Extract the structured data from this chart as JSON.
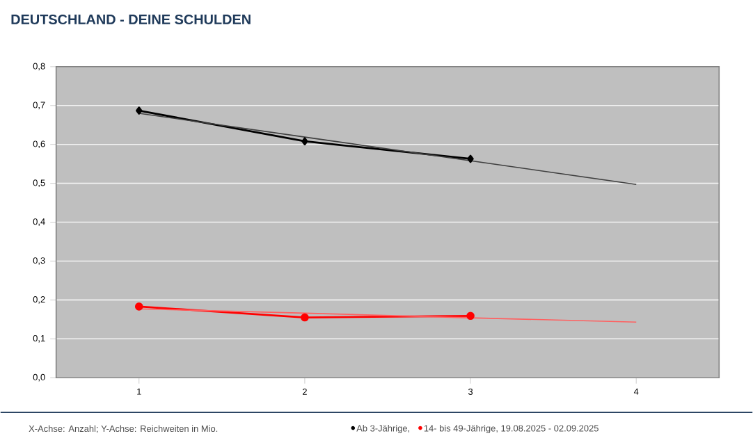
{
  "chart_data": {
    "type": "line",
    "title": "DEUTSCHLAND - DEINE SCHULDEN",
    "x": [
      1,
      2,
      3,
      4
    ],
    "xlim": [
      0.5,
      4.5
    ],
    "xticks": [
      1,
      2,
      3,
      4
    ],
    "ylim": [
      0,
      0.8
    ],
    "yticks": [
      {
        "value": 0,
        "label": "0,0"
      },
      {
        "value": 0.1,
        "label": "0,1"
      },
      {
        "value": 0.2,
        "label": "0,2"
      },
      {
        "value": 0.3,
        "label": "0,3"
      },
      {
        "value": 0.4,
        "label": "0,4"
      },
      {
        "value": 0.5,
        "label": "0,5"
      },
      {
        "value": 0.6,
        "label": "0,6"
      },
      {
        "value": 0.7,
        "label": "0,7"
      },
      {
        "value": 0.8,
        "label": "0,8"
      }
    ],
    "grid": "y",
    "legend": "bottom",
    "series": [
      {
        "name": "Ab 3-Jährige,",
        "color": "#000000",
        "marker": "diamond",
        "values": [
          0.687,
          0.608,
          0.563,
          null
        ]
      },
      {
        "name": "14- bis 49-Jährige, 19.08.2025 - 02.09.2025",
        "color": "#ff0000",
        "marker": "circle",
        "values": [
          0.183,
          0.155,
          0.159,
          null
        ]
      },
      {
        "type": "line",
        "color": "#404040",
        "marker": "none",
        "values": [
          0.68,
          0.619,
          0.558,
          0.497
        ]
      },
      {
        "type": "line",
        "color": "#ff6060",
        "marker": "none",
        "values": [
          0.177,
          0.166,
          0.154,
          0.143
        ]
      }
    ],
    "annotations": [
      "X-Achse: Anzahl; Y-Achse: Reichweiten in Mio."
    ]
  }
}
